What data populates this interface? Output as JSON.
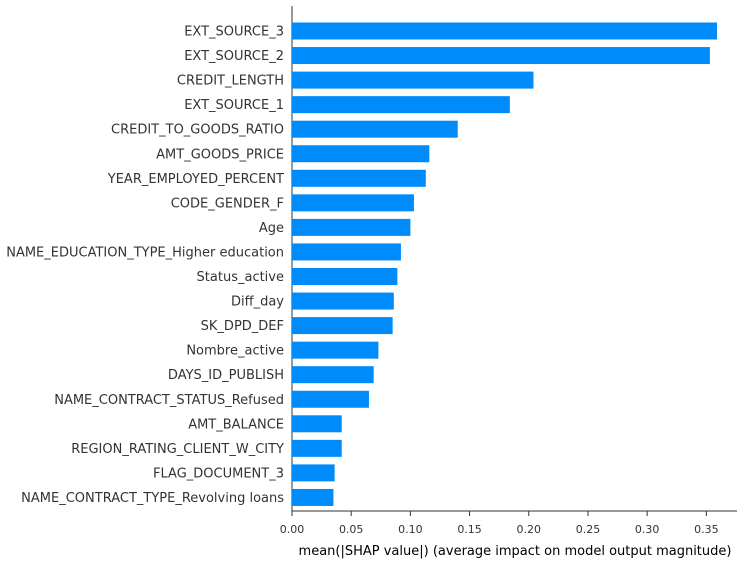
{
  "chart_data": {
    "type": "bar",
    "orientation": "horizontal",
    "categories": [
      "EXT_SOURCE_3",
      "EXT_SOURCE_2",
      "CREDIT_LENGTH",
      "EXT_SOURCE_1",
      "CREDIT_TO_GOODS_RATIO",
      "AMT_GOODS_PRICE",
      "YEAR_EMPLOYED_PERCENT",
      "CODE_GENDER_F",
      "Age",
      "NAME_EDUCATION_TYPE_Higher education",
      "Status_active",
      "Diff_day",
      "SK_DPD_DEF",
      "Nombre_active",
      "DAYS_ID_PUBLISH",
      "NAME_CONTRACT_STATUS_Refused",
      "AMT_BALANCE",
      "REGION_RATING_CLIENT_W_CITY",
      "FLAG_DOCUMENT_3",
      "NAME_CONTRACT_TYPE_Revolving loans"
    ],
    "values": [
      0.359,
      0.353,
      0.204,
      0.184,
      0.14,
      0.116,
      0.113,
      0.103,
      0.1,
      0.092,
      0.089,
      0.086,
      0.085,
      0.073,
      0.069,
      0.065,
      0.042,
      0.042,
      0.036,
      0.035
    ],
    "xlabel": "mean(|SHAP value|) (average impact on model output magnitude)",
    "ylabel": "",
    "xlim": [
      0,
      0.375
    ],
    "xticks": [
      0.0,
      0.05,
      0.1,
      0.15,
      0.2,
      0.25,
      0.3,
      0.35
    ],
    "xtick_labels": [
      "0.00",
      "0.05",
      "0.10",
      "0.15",
      "0.20",
      "0.25",
      "0.30",
      "0.35"
    ],
    "grid": false,
    "bar_color": "#008bfb"
  }
}
